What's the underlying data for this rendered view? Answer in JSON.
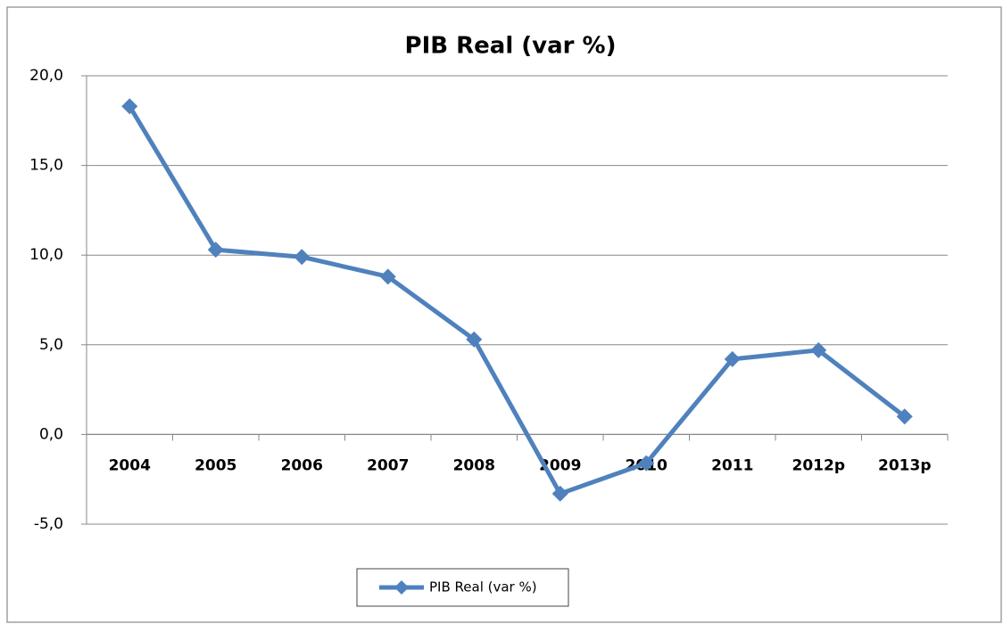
{
  "chart_data": {
    "type": "line",
    "title": "PIB Real (var %)",
    "categories": [
      "2004",
      "2005",
      "2006",
      "2007",
      "2008",
      "2009",
      "2010",
      "2011",
      "2012p",
      "2013p"
    ],
    "series": [
      {
        "name": "PIB Real (var %)",
        "color": "#4f81bd",
        "values": [
          18.3,
          10.3,
          9.9,
          8.8,
          5.3,
          -3.3,
          -1.6,
          4.2,
          4.7,
          1.0
        ]
      }
    ],
    "ylim": [
      -5,
      20
    ],
    "yticks": [
      {
        "value": -5,
        "label": "-5,0"
      },
      {
        "value": 0,
        "label": "0,0"
      },
      {
        "value": 5,
        "label": "5,0"
      },
      {
        "value": 10,
        "label": "10,0"
      },
      {
        "value": 15,
        "label": "15,0"
      },
      {
        "value": 20,
        "label": "20,0"
      }
    ],
    "grid": true,
    "legend": "bottom"
  }
}
